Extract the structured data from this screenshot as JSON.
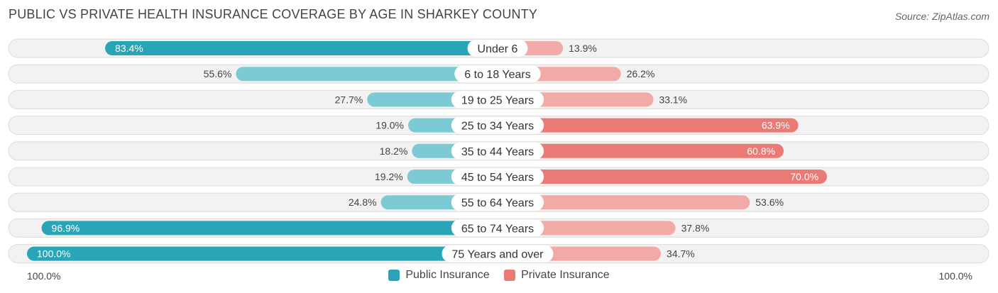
{
  "header": {
    "title": "PUBLIC VS PRIVATE HEALTH INSURANCE COVERAGE BY AGE IN SHARKEY COUNTY",
    "source": "Source: ZipAtlas.com"
  },
  "legend": {
    "public_label": "Public Insurance",
    "private_label": "Private Insurance"
  },
  "axis": {
    "left_label": "100.0%",
    "right_label": "100.0%"
  },
  "colors": {
    "public_strong": "#2aa5b7",
    "public_light": "#7ccbd4",
    "private_strong": "#e97a76",
    "private_light": "#f2aaa7",
    "row_bg": "#f2f2f2",
    "row_border": "#dcdcdc"
  },
  "chart_data": {
    "type": "bar",
    "orientation": "diverging-horizontal",
    "xlim": [
      -100,
      100
    ],
    "categories": [
      "Under 6",
      "6 to 18 Years",
      "19 to 25 Years",
      "25 to 34 Years",
      "35 to 44 Years",
      "45 to 54 Years",
      "55 to 64 Years",
      "65 to 74 Years",
      "75 Years and over"
    ],
    "series": [
      {
        "name": "Public Insurance",
        "values": [
          83.4,
          55.6,
          27.7,
          19.0,
          18.2,
          19.2,
          24.8,
          96.9,
          100.0
        ],
        "labels": [
          "83.4%",
          "55.6%",
          "27.7%",
          "19.0%",
          "18.2%",
          "19.2%",
          "24.8%",
          "96.9%",
          "100.0%"
        ]
      },
      {
        "name": "Private Insurance",
        "values": [
          13.9,
          26.2,
          33.1,
          63.9,
          60.8,
          70.0,
          53.6,
          37.8,
          34.7
        ],
        "labels": [
          "13.9%",
          "26.2%",
          "33.1%",
          "63.9%",
          "60.8%",
          "70.0%",
          "53.6%",
          "37.8%",
          "34.7%"
        ]
      }
    ],
    "legend_position": "bottom-center"
  }
}
